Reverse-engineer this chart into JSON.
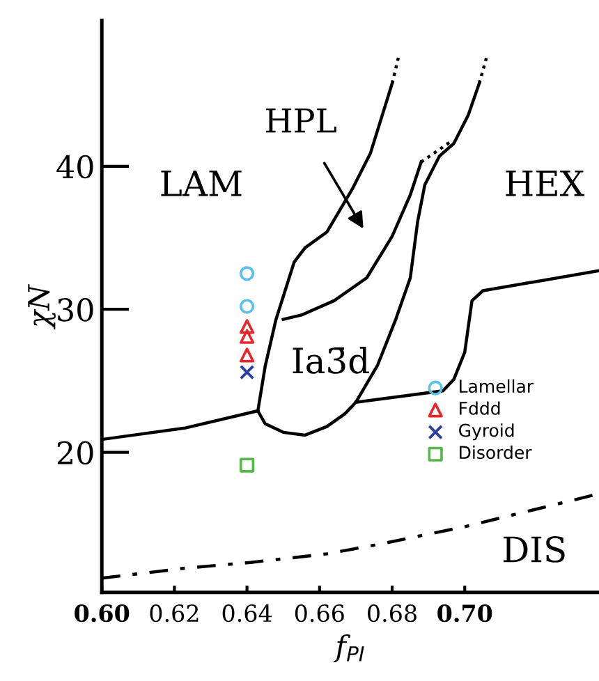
{
  "chart_data": {
    "type": "line",
    "xlabel": "f$_{PI}$",
    "ylabel": "χN",
    "xlim": [
      0.6,
      0.737
    ],
    "ylim": [
      10.2,
      50.2
    ],
    "xticks": [
      {
        "value": 0.6,
        "label": "0.60"
      },
      0.62,
      0.64,
      0.66,
      0.68,
      {
        "value": 0.7,
        "label": "0.70"
      }
    ],
    "yticks": [
      20,
      30,
      40
    ],
    "grid": false,
    "legend": "right",
    "series": [
      {
        "color": "#000000",
        "line_style": "solid",
        "x": [
          0.6,
          0.623,
          0.643
        ],
        "values": [
          20.9,
          21.7,
          22.9
        ]
      },
      {
        "color": "#000000",
        "line_style": "solid",
        "x": [
          0.67,
          0.694,
          0.697,
          0.7,
          0.702,
          0.705,
          0.737
        ],
        "values": [
          23.5,
          24.3,
          25.1,
          27.0,
          30.6,
          31.3,
          32.7
        ]
      },
      {
        "color": "#000000",
        "line_style": "solid",
        "x": [
          0.643,
          0.645,
          0.648,
          0.65,
          0.653,
          0.656,
          0.662,
          0.669,
          0.674,
          0.68
        ],
        "values": [
          22.9,
          26.0,
          29.3,
          30.9,
          33.3,
          34.3,
          35.4,
          38.4,
          40.9,
          45.8
        ]
      },
      {
        "color": "#000000",
        "line_style": "dotted",
        "x": [
          0.68,
          0.682
        ],
        "values": [
          45.8,
          47.9
        ]
      },
      {
        "color": "#000000",
        "line_style": "solid",
        "x": [
          0.65,
          0.655,
          0.664,
          0.673,
          0.68,
          0.685,
          0.688
        ],
        "values": [
          29.3,
          29.6,
          30.6,
          32.2,
          35.1,
          38.0,
          40.3
        ]
      },
      {
        "color": "#000000",
        "line_style": "dotted",
        "x": [
          0.688,
          0.696
        ],
        "values": [
          40.3,
          41.7
        ]
      },
      {
        "color": "#000000",
        "line_style": "solid",
        "x": [
          0.643,
          0.645,
          0.65,
          0.656,
          0.662,
          0.667,
          0.67,
          0.676,
          0.681,
          0.685,
          0.687,
          0.689,
          0.693,
          0.697,
          0.701,
          0.704
        ],
        "values": [
          22.9,
          22.0,
          21.4,
          21.2,
          21.8,
          22.7,
          23.5,
          26.1,
          29.3,
          32.2,
          36.1,
          38.7,
          40.7,
          41.6,
          43.6,
          45.8
        ]
      },
      {
        "color": "#000000",
        "line_style": "dotted",
        "x": [
          0.704,
          0.706
        ],
        "values": [
          45.8,
          47.6
        ]
      },
      {
        "color": "#000000",
        "line_style": "dashdot",
        "x": [
          0.6,
          0.623,
          0.641,
          0.662,
          0.677,
          0.7,
          0.737
        ],
        "values": [
          11.2,
          11.9,
          12.3,
          12.9,
          13.6,
          14.8,
          17.1
        ]
      },
      {
        "type": "scatter",
        "name": "Lamellar",
        "color": "#5bc0e8",
        "marker": "circle",
        "x": [
          0.64,
          0.64
        ],
        "values": [
          32.5,
          30.2
        ]
      },
      {
        "type": "scatter",
        "name": "Fddd",
        "color": "#e8262a",
        "marker": "triangle",
        "x": [
          0.64,
          0.64,
          0.64
        ],
        "values": [
          28.8,
          28.1,
          26.8
        ]
      },
      {
        "type": "scatter",
        "name": "Gyroid",
        "color": "#2b3fa0",
        "marker": "cross",
        "x": [
          0.64
        ],
        "values": [
          25.6
        ]
      },
      {
        "type": "scatter",
        "name": "Disorder",
        "color": "#55b848",
        "marker": "square",
        "x": [
          0.64
        ],
        "values": [
          19.1
        ]
      }
    ],
    "annotations": [
      "LAM",
      "HEX",
      "DIS",
      "Ia3̄d",
      "HPL"
    ]
  }
}
